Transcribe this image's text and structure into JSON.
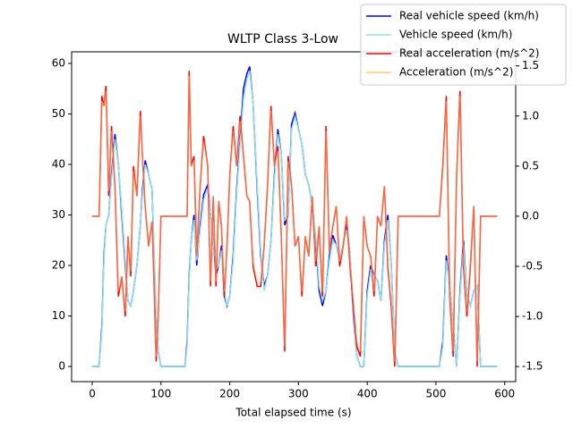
{
  "chart_data": {
    "type": "line",
    "title": "WLTP Class 3-Low",
    "xlabel": "Total elapsed time (s)",
    "xlim": [
      -30,
      616
    ],
    "xticks": [
      0,
      100,
      200,
      300,
      400,
      500,
      600
    ],
    "ylim": [
      -3,
      62.3
    ],
    "yticks": [
      0,
      10,
      20,
      30,
      40,
      50,
      60
    ],
    "y2lim": [
      -1.65,
      1.64
    ],
    "y2ticks": [
      -1.5,
      {
        "value": -1,
        "label": "-1.0"
      },
      -0.5,
      {
        "value": 0,
        "label": "0.0"
      },
      0.5,
      {
        "value": 1,
        "label": "1.0"
      },
      1.5
    ],
    "legend": "upper right",
    "x": [
      0,
      10,
      14,
      17,
      20,
      24,
      28,
      33,
      38,
      43,
      48,
      52,
      56,
      60,
      65,
      70,
      73,
      77,
      82,
      87,
      90,
      93,
      96,
      100,
      110,
      135,
      138,
      141,
      144,
      148,
      152,
      157,
      162,
      168,
      172,
      176,
      180,
      184,
      188,
      192,
      196,
      200,
      205,
      210,
      215,
      220,
      225,
      229,
      234,
      240,
      245,
      250,
      255,
      260,
      265,
      270,
      275,
      280,
      285,
      290,
      295,
      300,
      305,
      310,
      315,
      320,
      325,
      330,
      335,
      340,
      345,
      350,
      355,
      360,
      365,
      370,
      375,
      380,
      385,
      390,
      395,
      400,
      405,
      410,
      415,
      420,
      425,
      430,
      435,
      440,
      445,
      470,
      505,
      510,
      515,
      520,
      525,
      530,
      535,
      540,
      545,
      550,
      555,
      560,
      565,
      589
    ],
    "series": [
      {
        "name": "Real vehicle speed (km/h)",
        "color": "#0000ff",
        "values": [
          0,
          0,
          8,
          22,
          28,
          30,
          38,
          46,
          40,
          30,
          20,
          13,
          12,
          15,
          20,
          28,
          35,
          40.8,
          38,
          35,
          22,
          10,
          3,
          0,
          0,
          0,
          5,
          18,
          25,
          30,
          20,
          28,
          34,
          36,
          30,
          25,
          18,
          20,
          24,
          14,
          12,
          14,
          22,
          35,
          45,
          55,
          58,
          59.4,
          52,
          35,
          22,
          16,
          18,
          25,
          38,
          47,
          42,
          28,
          30,
          48,
          50.2,
          47,
          44,
          38,
          36,
          32,
          25,
          15,
          12,
          15,
          22,
          26,
          24,
          21,
          24,
          28,
          22,
          10,
          2,
          0,
          0,
          15,
          20,
          18,
          17,
          13,
          25,
          30,
          20,
          3,
          0,
          0,
          0,
          5,
          22,
          16,
          8,
          0,
          15,
          25,
          14,
          12,
          15,
          16,
          0,
          0
        ]
      },
      {
        "name": "Vehicle speed (km/h)",
        "color": "#90e0ea",
        "values": [
          0,
          0,
          7,
          21,
          28,
          30,
          37,
          45,
          40,
          31,
          21,
          13,
          12,
          15,
          20,
          28,
          34,
          40,
          38,
          35,
          23,
          11,
          3,
          0,
          0,
          0,
          4,
          17,
          25,
          29,
          21,
          27,
          33,
          35,
          30,
          25,
          19,
          20,
          23,
          15,
          12,
          14,
          21,
          34,
          44,
          53,
          57,
          58.5,
          52,
          36,
          23,
          15,
          18,
          25,
          37,
          46,
          42,
          29,
          30,
          47,
          49.5,
          47,
          44,
          38,
          36,
          32,
          26,
          16,
          13,
          15,
          21,
          25,
          24,
          21,
          24,
          27,
          22,
          11,
          2,
          0,
          0,
          14,
          19,
          18,
          17,
          13,
          24,
          29,
          20,
          3,
          0,
          0,
          0,
          4,
          21,
          16,
          8,
          0,
          14,
          24,
          14,
          12,
          15,
          16,
          0,
          0
        ]
      },
      {
        "name": "Real acceleration (m/s^2)",
        "color": "#ff0000",
        "axis": "y2",
        "values": [
          0,
          0,
          1.2,
          1.1,
          1.3,
          0.2,
          0.9,
          0.3,
          -0.8,
          -0.6,
          -1.0,
          -0.2,
          -0.6,
          0.5,
          0.2,
          1.05,
          0.6,
          0.1,
          -0.3,
          -0.05,
          -0.7,
          -1.45,
          -1.0,
          0,
          0,
          0,
          0,
          1.45,
          0.5,
          0.6,
          -0.4,
          0.3,
          0.8,
          0.5,
          -0.7,
          0.2,
          -0.7,
          0.15,
          -0.1,
          -0.8,
          -0.3,
          0.4,
          0.9,
          0.5,
          1.0,
          0.6,
          0.2,
          0.15,
          -0.5,
          -0.7,
          -0.7,
          -0.3,
          0.3,
          1.1,
          0.5,
          0.7,
          -0.2,
          -1.35,
          0.6,
          0.3,
          -0.3,
          -0.2,
          -0.8,
          -0.2,
          -0.4,
          0.2,
          -0.5,
          -0.1,
          -0.8,
          0.9,
          -0.35,
          -0.1,
          0.1,
          -0.5,
          -0.3,
          0,
          -0.5,
          -0.9,
          -1.3,
          -1.4,
          0,
          -0.3,
          -0.4,
          -0.8,
          0,
          -0.1,
          0.3,
          -0.5,
          -0.9,
          -1.5,
          0,
          0,
          0,
          0.5,
          1.2,
          -0.8,
          -1.4,
          0.4,
          1.25,
          -0.5,
          -1.0,
          -0.5,
          0.1,
          -1.5,
          0,
          0
        ]
      },
      {
        "name": "Acceleration (m/s^2)",
        "color": "#ffc878",
        "axis": "y2",
        "values": [
          0,
          0,
          1.15,
          1.1,
          1.25,
          0.25,
          0.85,
          0.3,
          -0.75,
          -0.6,
          -0.95,
          -0.2,
          -0.55,
          0.45,
          0.2,
          1.0,
          0.6,
          0.1,
          -0.3,
          -0.05,
          -0.65,
          -1.4,
          -1.0,
          0,
          0,
          0,
          0,
          1.4,
          0.5,
          0.55,
          -0.4,
          0.3,
          0.75,
          0.5,
          -0.65,
          0.2,
          -0.65,
          0.15,
          -0.1,
          -0.75,
          -0.3,
          0.4,
          0.85,
          0.5,
          0.95,
          0.6,
          0.2,
          0.15,
          -0.45,
          -0.65,
          -0.65,
          -0.3,
          0.3,
          1.05,
          0.5,
          0.65,
          -0.2,
          -1.3,
          0.55,
          0.3,
          -0.3,
          -0.2,
          -0.75,
          -0.2,
          -0.4,
          0.2,
          -0.45,
          -0.1,
          -0.75,
          0.85,
          -0.35,
          -0.1,
          0.1,
          -0.45,
          -0.3,
          0,
          -0.45,
          -0.85,
          -1.25,
          -1.35,
          0,
          -0.3,
          -0.4,
          -0.75,
          0,
          -0.1,
          0.3,
          -0.45,
          -0.85,
          -1.45,
          0,
          0,
          0,
          0.45,
          1.15,
          -0.75,
          -1.35,
          0.4,
          1.2,
          -0.45,
          -0.95,
          -0.45,
          0.1,
          -1.45,
          0,
          0
        ]
      }
    ]
  }
}
